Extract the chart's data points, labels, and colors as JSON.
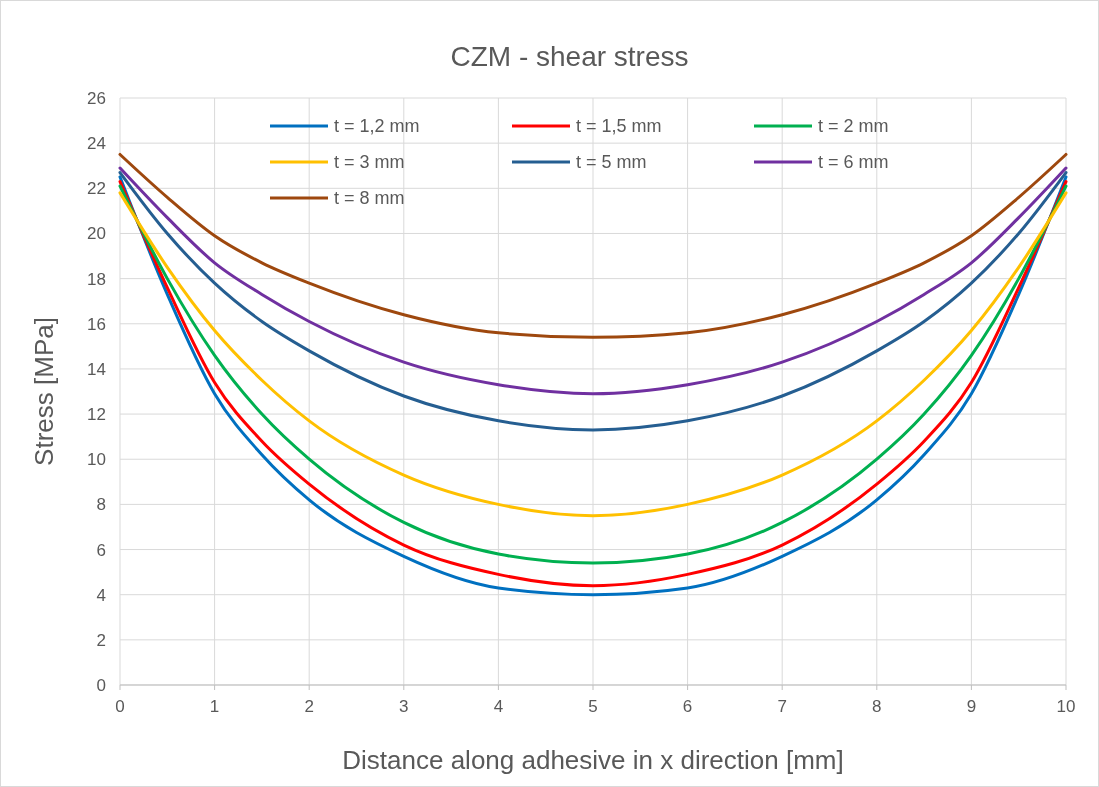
{
  "chart_data": {
    "type": "line",
    "title": "CZM - shear stress",
    "xlabel": "Distance along adhesive in x direction [mm]",
    "ylabel": "Stress [MPa]",
    "x": [
      0,
      0.5,
      1,
      1.5,
      2,
      3,
      4,
      5,
      6,
      7,
      8,
      8.5,
      9,
      9.5,
      10
    ],
    "xlim": [
      0,
      10
    ],
    "xticks": [
      0,
      1,
      2,
      3,
      4,
      5,
      6,
      7,
      8,
      9,
      10
    ],
    "ylim": [
      0,
      26
    ],
    "yticks": [
      0,
      2,
      4,
      6,
      8,
      10,
      12,
      14,
      16,
      18,
      20,
      22,
      24,
      26
    ],
    "grid": true,
    "legend": "top",
    "marker": "none",
    "line_style": "solid",
    "series": [
      {
        "name": "t = 1,2 mm",
        "color": "#0070c0",
        "values": [
          22.5,
          17.3,
          12.9,
          10.2,
          8.2,
          5.7,
          4.3,
          4.0,
          4.3,
          5.7,
          8.2,
          10.2,
          12.9,
          17.3,
          22.5
        ]
      },
      {
        "name": "t = 1,5 mm",
        "color": "#ff0000",
        "values": [
          22.3,
          17.6,
          13.4,
          10.8,
          8.9,
          6.2,
          4.9,
          4.4,
          4.9,
          6.2,
          8.9,
          10.8,
          13.4,
          17.6,
          22.3
        ]
      },
      {
        "name": "t = 2 mm",
        "color": "#00b050",
        "values": [
          22.1,
          18.0,
          14.6,
          12.0,
          10.0,
          7.2,
          5.8,
          5.4,
          5.8,
          7.2,
          10.0,
          12.0,
          14.6,
          18.0,
          22.1
        ]
      },
      {
        "name": "t = 3 mm",
        "color": "#ffc000",
        "values": [
          21.8,
          18.5,
          15.7,
          13.5,
          11.7,
          9.3,
          8.0,
          7.5,
          8.0,
          9.3,
          11.7,
          13.5,
          15.7,
          18.5,
          21.8
        ]
      },
      {
        "name": "t = 5 mm",
        "color": "#255e91",
        "values": [
          22.7,
          20.0,
          17.8,
          16.1,
          14.8,
          12.8,
          11.7,
          11.3,
          11.7,
          12.8,
          14.8,
          16.1,
          17.8,
          20.0,
          22.7
        ]
      },
      {
        "name": "t = 6 mm",
        "color": "#7030a0",
        "values": [
          22.9,
          20.7,
          18.7,
          17.3,
          16.1,
          14.3,
          13.3,
          12.9,
          13.3,
          14.3,
          16.1,
          17.3,
          18.7,
          20.7,
          22.9
        ]
      },
      {
        "name": "t = 8 mm",
        "color": "#9e480e",
        "values": [
          23.5,
          21.6,
          19.9,
          18.7,
          17.8,
          16.4,
          15.6,
          15.4,
          15.6,
          16.4,
          17.8,
          18.7,
          19.9,
          21.6,
          23.5
        ]
      }
    ]
  }
}
